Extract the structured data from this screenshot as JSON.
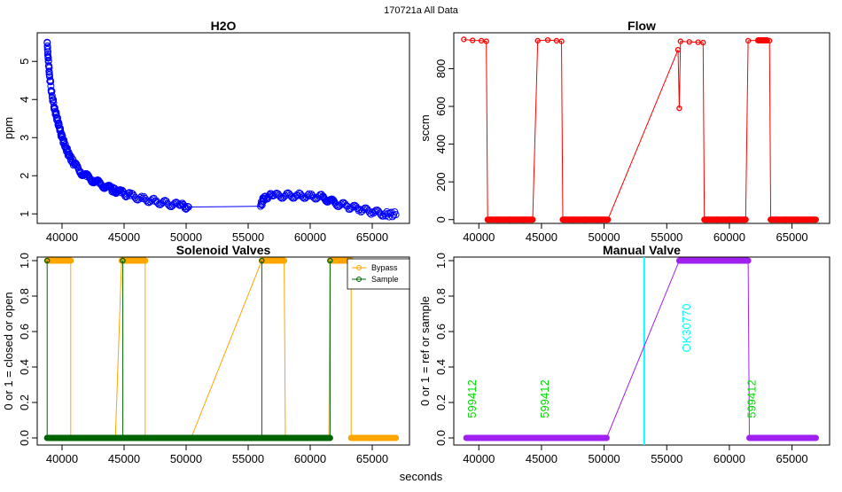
{
  "figure": {
    "suptitle": "170721a   All Data",
    "xlabel": "seconds"
  },
  "chart_data": [
    {
      "type": "scatter",
      "title": "H2O",
      "xlabel": "",
      "ylabel": "ppm",
      "xlim": [
        38000,
        68000
      ],
      "ylim": [
        0.75,
        5.75
      ],
      "xticks": [
        40000,
        45000,
        50000,
        55000,
        60000,
        65000
      ],
      "yticks": [
        1,
        2,
        3,
        4,
        5
      ],
      "series": [
        {
          "name": "H2O",
          "color": "#0000ff",
          "points": [
            [
              38800,
              5.5
            ],
            [
              38900,
              5.0
            ],
            [
              39000,
              4.6
            ],
            [
              39200,
              4.1
            ],
            [
              39400,
              3.75
            ],
            [
              39600,
              3.5
            ],
            [
              39800,
              3.25
            ],
            [
              40000,
              3.0
            ],
            [
              40300,
              2.75
            ],
            [
              40600,
              2.5
            ],
            [
              41000,
              2.3
            ],
            [
              41500,
              2.1
            ],
            [
              42000,
              1.98
            ],
            [
              42500,
              1.88
            ],
            [
              43000,
              1.8
            ],
            [
              43500,
              1.72
            ],
            [
              44000,
              1.65
            ],
            [
              44300,
              1.6
            ],
            [
              44800,
              1.55
            ],
            [
              45500,
              1.48
            ],
            [
              46500,
              1.4
            ],
            [
              47500,
              1.33
            ],
            [
              48500,
              1.27
            ],
            [
              49500,
              1.22
            ],
            [
              50200,
              1.18
            ],
            [
              56000,
              1.2
            ],
            [
              56300,
              1.45
            ],
            [
              57000,
              1.47
            ],
            [
              58000,
              1.48
            ],
            [
              59000,
              1.48
            ],
            [
              60000,
              1.47
            ],
            [
              61000,
              1.44
            ],
            [
              61500,
              1.36
            ],
            [
              62000,
              1.28
            ],
            [
              63000,
              1.2
            ],
            [
              64000,
              1.12
            ],
            [
              65000,
              1.05
            ],
            [
              66000,
              1.0
            ],
            [
              66900,
              0.98
            ]
          ]
        }
      ]
    },
    {
      "type": "line",
      "title": "Flow",
      "xlabel": "",
      "ylabel": "sccm",
      "xlim": [
        38000,
        68000
      ],
      "ylim": [
        -20,
        990
      ],
      "xticks": [
        40000,
        45000,
        50000,
        55000,
        60000,
        65000
      ],
      "yticks": [
        0,
        200,
        400,
        600,
        800
      ],
      "series": [
        {
          "name": "Flow",
          "color": "#ff0000",
          "points": [
            [
              38800,
              955
            ],
            [
              39500,
              950
            ],
            [
              40200,
              948
            ],
            [
              40600,
              945
            ],
            [
              40700,
              0
            ],
            [
              41500,
              0
            ],
            [
              42500,
              0
            ],
            [
              43500,
              0
            ],
            [
              44300,
              0
            ],
            [
              44700,
              948
            ],
            [
              45500,
              952
            ],
            [
              46200,
              948
            ],
            [
              46600,
              945
            ],
            [
              46700,
              0
            ],
            [
              47500,
              0
            ],
            [
              48500,
              0
            ],
            [
              49500,
              0
            ],
            [
              50300,
              0
            ],
            [
              55900,
              900
            ],
            [
              56000,
              590
            ],
            [
              56100,
              945
            ],
            [
              56800,
              942
            ],
            [
              57500,
              940
            ],
            [
              57900,
              938
            ],
            [
              58000,
              0
            ],
            [
              59000,
              0
            ],
            [
              60000,
              0
            ],
            [
              61300,
              0
            ],
            [
              61500,
              948
            ],
            [
              62300,
              950
            ],
            [
              63000,
              950
            ],
            [
              63200,
              948
            ],
            [
              63300,
              0
            ],
            [
              64500,
              0
            ],
            [
              65500,
              0
            ],
            [
              66900,
              0
            ]
          ]
        }
      ]
    },
    {
      "type": "line",
      "title": "Solenoid Valves",
      "xlabel": "",
      "ylabel": "0 or 1 = closed or open",
      "xlim": [
        38000,
        68000
      ],
      "ylim": [
        -0.04,
        1.02
      ],
      "xticks": [
        40000,
        45000,
        50000,
        55000,
        60000,
        65000
      ],
      "yticks": [
        0.0,
        0.2,
        0.4,
        0.6,
        0.8,
        1.0
      ],
      "legend": "top-right",
      "series": [
        {
          "name": "Bypass",
          "color": "#ffa500",
          "points": [
            [
              38800,
              1
            ],
            [
              40700,
              1
            ],
            [
              40700,
              0
            ],
            [
              44300,
              0
            ],
            [
              44800,
              1
            ],
            [
              46700,
              1
            ],
            [
              46700,
              0
            ],
            [
              50400,
              0
            ],
            [
              56100,
              1
            ],
            [
              57900,
              1
            ],
            [
              58000,
              0
            ],
            [
              61500,
              0
            ],
            [
              61600,
              1
            ],
            [
              63300,
              1
            ],
            [
              63300,
              0
            ],
            [
              66900,
              0
            ]
          ]
        },
        {
          "name": "Sample",
          "color": "#006400",
          "points": [
            [
              38800,
              0
            ],
            [
              38800,
              1
            ],
            [
              38800,
              0
            ],
            [
              44900,
              0
            ],
            [
              44900,
              1
            ],
            [
              44900,
              0
            ],
            [
              56100,
              0
            ],
            [
              56100,
              1
            ],
            [
              56100,
              0
            ],
            [
              61600,
              0
            ],
            [
              61600,
              1
            ],
            [
              61600,
              0
            ]
          ]
        }
      ]
    },
    {
      "type": "line",
      "title": "Manual Valve",
      "xlabel": "",
      "ylabel": "0 or 1 = ref or sample",
      "xlim": [
        38000,
        68000
      ],
      "ylim": [
        -0.04,
        1.02
      ],
      "xticks": [
        40000,
        45000,
        50000,
        55000,
        60000,
        65000
      ],
      "yticks": [
        0.0,
        0.2,
        0.4,
        0.6,
        0.8,
        1.0
      ],
      "series": [
        {
          "name": "Manual",
          "color": "#a020f0",
          "points": [
            [
              39000,
              0
            ],
            [
              44400,
              0
            ],
            [
              44400,
              0
            ],
            [
              45000,
              0
            ],
            [
              50200,
              0
            ],
            [
              56000,
              1
            ],
            [
              61500,
              1
            ],
            [
              61600,
              0
            ],
            [
              66900,
              0
            ]
          ]
        }
      ],
      "vline": {
        "x": 53200,
        "color": "#00ffff",
        "label": "OK30770"
      },
      "annotations": [
        {
          "x": 39500,
          "text": "599412",
          "color": "#00dd00"
        },
        {
          "x": 45300,
          "text": "599412",
          "color": "#00dd00"
        },
        {
          "x": 61800,
          "text": "599412",
          "color": "#00dd00"
        }
      ]
    }
  ]
}
